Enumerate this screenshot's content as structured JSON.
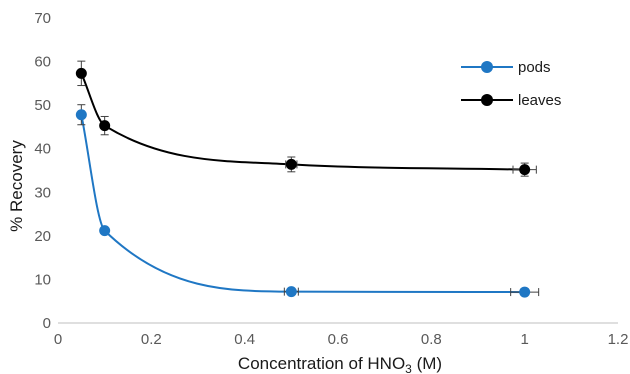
{
  "chart_data": {
    "type": "scatter",
    "title": "",
    "xlabel_prefix": "Concentration of HNO",
    "xlabel_subscript": "3",
    "xlabel_suffix": " (M)",
    "ylabel": "% Recovery",
    "xlim": [
      0,
      1.2
    ],
    "ylim": [
      0,
      70
    ],
    "xticks": [
      "0",
      "0.2",
      "0.4",
      "0.6",
      "0.8",
      "1",
      "1.2"
    ],
    "yticks": [
      "0",
      "10",
      "20",
      "30",
      "40",
      "50",
      "60",
      "70"
    ],
    "grid": false,
    "smoothed_lines": true,
    "legend_position": "top-right",
    "series": [
      {
        "name": "pods",
        "color": "#1f77c4",
        "x": [
          0.05,
          0.1,
          0.5,
          1.0
        ],
        "y": [
          47.8,
          21.2,
          7.2,
          7.1
        ],
        "y_err": [
          2.3,
          0.6,
          0.5,
          0.4
        ],
        "x_err": [
          0,
          0,
          0.015,
          0.03
        ]
      },
      {
        "name": "leaves",
        "color": "#000000",
        "x": [
          0.05,
          0.1,
          0.5,
          1.0
        ],
        "y": [
          57.3,
          45.3,
          36.4,
          35.2
        ],
        "y_err": [
          2.8,
          2.1,
          1.7,
          1.5
        ],
        "x_err": [
          0,
          0,
          0.012,
          0.025
        ]
      }
    ]
  }
}
